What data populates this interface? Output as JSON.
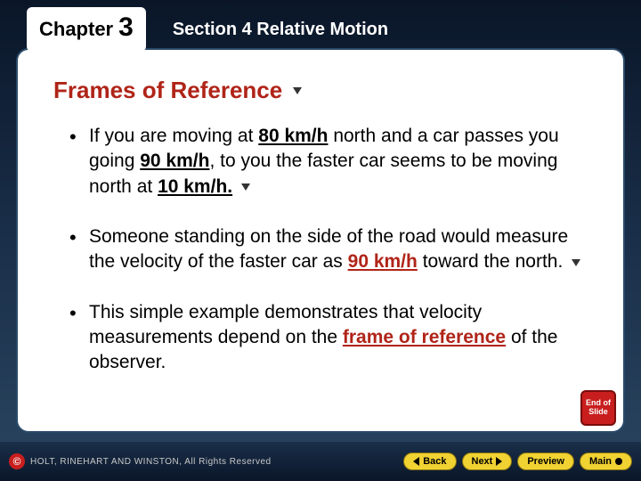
{
  "header": {
    "chapter_word": "Chapter",
    "chapter_num": "3",
    "section_title": "Section 4  Relative Motion"
  },
  "heading": "Frames of Reference",
  "bullets": [
    {
      "segments": [
        {
          "t": "If you are moving at ",
          "b": false,
          "u": false,
          "red": false
        },
        {
          "t": "80 km/h",
          "b": true,
          "u": true,
          "red": false
        },
        {
          "t": " north and a car passes you going ",
          "b": false,
          "u": false,
          "red": false
        },
        {
          "t": "90 km/h",
          "b": true,
          "u": true,
          "red": false
        },
        {
          "t": ", to you the faster car seems to be moving north at ",
          "b": false,
          "u": false,
          "red": false
        },
        {
          "t": "10 km/h.",
          "b": true,
          "u": true,
          "red": false
        }
      ],
      "arrow": true
    },
    {
      "segments": [
        {
          "t": "Someone standing on the side of the road would measure the velocity of the faster car as ",
          "b": false,
          "u": false,
          "red": false
        },
        {
          "t": "90 km/h",
          "b": true,
          "u": true,
          "red": true
        },
        {
          "t": " toward the north.",
          "b": false,
          "u": false,
          "red": false
        }
      ],
      "arrow": true
    },
    {
      "segments": [
        {
          "t": "This simple example demonstrates that velocity measurements depend on the ",
          "b": false,
          "u": false,
          "red": false
        },
        {
          "t": "frame of reference",
          "b": true,
          "u": true,
          "red": true
        },
        {
          "t": " of the observer.",
          "b": false,
          "u": false,
          "red": false
        }
      ],
      "arrow": false
    }
  ],
  "end_slide": "End of Slide",
  "footer": {
    "copyright_symbol": "©",
    "copyright_text": "HOLT, RINEHART AND WINSTON, All Rights Reserved",
    "back": "Back",
    "next": "Next",
    "preview": "Preview",
    "main": "Main"
  },
  "colors": {
    "bg_top": "#0a1628",
    "bg_bottom": "#2a4560",
    "panel_bg": "#ffffff",
    "heading_red": "#b02418",
    "accent_red": "#c81e1e",
    "nav_yellow": "#f0d232"
  },
  "typography": {
    "heading_fontsize": 26,
    "bullet_fontsize": 21,
    "section_fontsize": 20,
    "chapter_word_fontsize": 22,
    "chapter_num_fontsize": 30
  }
}
